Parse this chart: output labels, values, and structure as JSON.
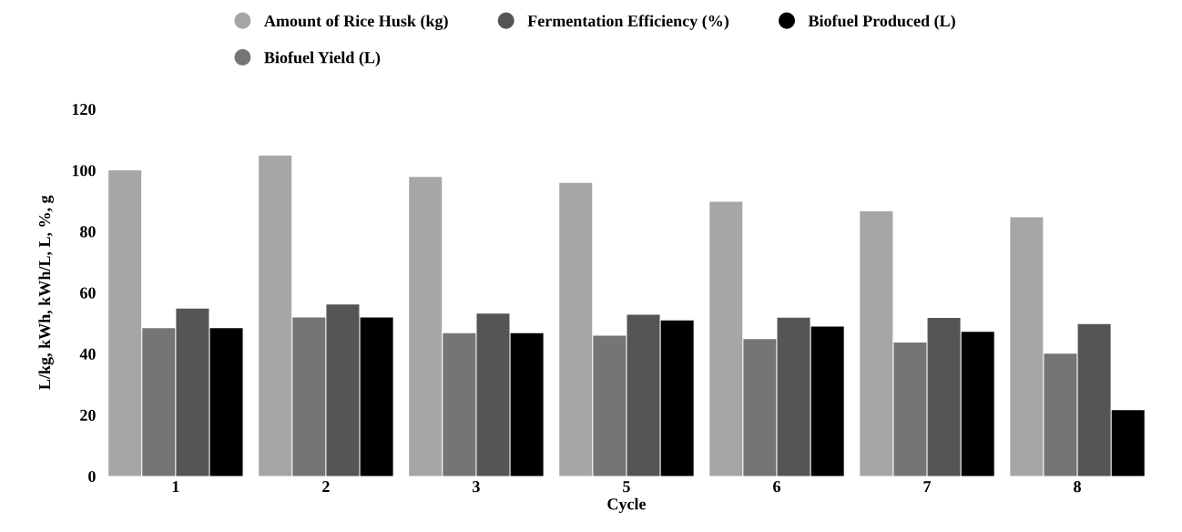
{
  "chart_data": {
    "type": "bar",
    "xlabel": "Cycle",
    "ylabel": "L/kg, kWh, kWh/L, L, %, g",
    "categories": [
      "1",
      "2",
      "3",
      "5",
      "6",
      "7",
      "8"
    ],
    "series": [
      {
        "name": "Amount of Rice Husk (kg)",
        "color": "#a6a6a6",
        "values": [
          100,
          104.8,
          97.8,
          95.9,
          89.7,
          86.6,
          84.6
        ]
      },
      {
        "name": "Biofuel Yield (L)",
        "color": "#757575",
        "values": [
          48.4,
          51.9,
          46.7,
          45.9,
          44.8,
          43.7,
          40.0
        ]
      },
      {
        "name": "Fermentation Efficiency (%)",
        "color": "#555555",
        "values": [
          54.8,
          56.1,
          53.1,
          52.8,
          51.8,
          51.7,
          49.7
        ]
      },
      {
        "name": "Biofuel Produced (L)",
        "color": "#000000",
        "values": [
          48.4,
          51.9,
          46.7,
          50.9,
          48.9,
          47.2,
          21.6
        ]
      }
    ],
    "ylim": [
      0,
      120
    ],
    "yticks": [
      0,
      20,
      40,
      60,
      80,
      100,
      120
    ],
    "grid": false,
    "legend": "top"
  }
}
